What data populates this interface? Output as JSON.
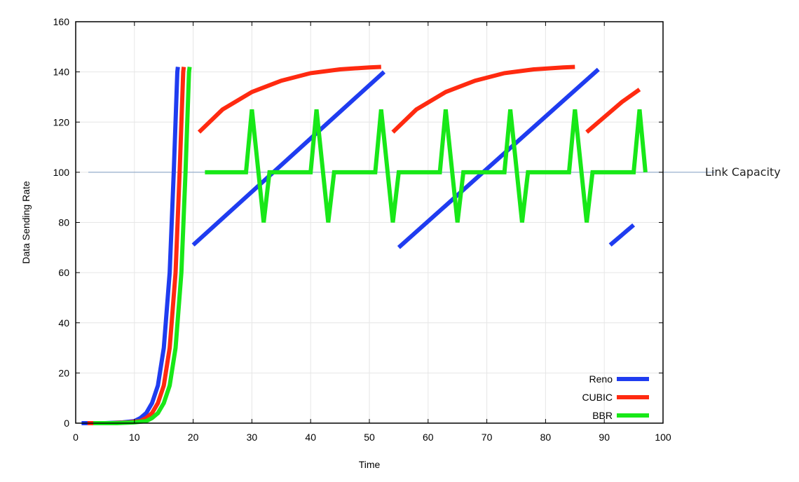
{
  "chart_data": {
    "type": "line",
    "title": "",
    "xlabel": "Time",
    "ylabel": "Data Sending Rate",
    "xlim": [
      0,
      100
    ],
    "ylim": [
      0,
      160
    ],
    "xticks": [
      0,
      10,
      20,
      30,
      40,
      50,
      60,
      70,
      80,
      90,
      100
    ],
    "yticks": [
      0,
      20,
      40,
      60,
      80,
      100,
      120,
      140,
      160
    ],
    "grid": true,
    "legend_position": "bottom-right",
    "reference_line": {
      "y": 100,
      "label": "Link Capacity",
      "color": "#7f9cc2"
    },
    "series": [
      {
        "name": "Reno",
        "color": "#1f3cf0",
        "segments": [
          [
            [
              1,
              0
            ],
            [
              5,
              0
            ],
            [
              8,
              0.3
            ],
            [
              10,
              0.8
            ],
            [
              11,
              2
            ],
            [
              12,
              4
            ],
            [
              13,
              8
            ],
            [
              14,
              15
            ],
            [
              15,
              30
            ],
            [
              16,
              60
            ],
            [
              16.7,
              100
            ],
            [
              17.3,
              140
            ],
            [
              17.4,
              142
            ]
          ],
          [
            [
              20,
              71
            ],
            [
              52.5,
              140
            ]
          ],
          [
            [
              55,
              70
            ],
            [
              89,
              141
            ]
          ],
          [
            [
              91,
              71
            ],
            [
              95,
              79
            ]
          ]
        ]
      },
      {
        "name": "CUBIC",
        "color": "#ff2a10",
        "segments": [
          [
            [
              2,
              0
            ],
            [
              6,
              0
            ],
            [
              9,
              0.3
            ],
            [
              11,
              0.8
            ],
            [
              12,
              2
            ],
            [
              13,
              4
            ],
            [
              14,
              8
            ],
            [
              15,
              15
            ],
            [
              16,
              30
            ],
            [
              17,
              60
            ],
            [
              17.7,
              100
            ],
            [
              18.3,
              140
            ],
            [
              18.4,
              142
            ]
          ],
          [
            [
              21,
              116
            ],
            [
              25,
              125
            ],
            [
              30,
              132
            ],
            [
              35,
              136.5
            ],
            [
              40,
              139.5
            ],
            [
              45,
              141
            ],
            [
              50,
              141.8
            ],
            [
              52,
              142
            ]
          ],
          [
            [
              54,
              116
            ],
            [
              58,
              125
            ],
            [
              63,
              132
            ],
            [
              68,
              136.5
            ],
            [
              73,
              139.5
            ],
            [
              78,
              141
            ],
            [
              83,
              141.8
            ],
            [
              85,
              142
            ]
          ],
          [
            [
              87,
              116
            ],
            [
              90,
              122
            ],
            [
              93,
              128
            ],
            [
              96,
              133
            ]
          ]
        ]
      },
      {
        "name": "BBR",
        "color": "#18e818",
        "segments": [
          [
            [
              3,
              0
            ],
            [
              7,
              0
            ],
            [
              10,
              0.3
            ],
            [
              12,
              0.8
            ],
            [
              13,
              2
            ],
            [
              14,
              4
            ],
            [
              15,
              8
            ],
            [
              16,
              15
            ],
            [
              17,
              30
            ],
            [
              18,
              60
            ],
            [
              18.7,
              100
            ],
            [
              19.3,
              140
            ],
            [
              19.4,
              142
            ]
          ],
          [
            [
              22,
              100
            ],
            [
              29,
              100
            ],
            [
              30,
              125
            ],
            [
              32,
              80
            ],
            [
              33,
              100
            ],
            [
              40,
              100
            ],
            [
              41,
              125
            ],
            [
              43,
              80
            ],
            [
              44,
              100
            ],
            [
              51,
              100
            ],
            [
              52,
              125
            ],
            [
              54,
              80
            ],
            [
              55,
              100
            ],
            [
              62,
              100
            ],
            [
              63,
              125
            ],
            [
              65,
              80
            ],
            [
              66,
              100
            ],
            [
              73,
              100
            ],
            [
              74,
              125
            ],
            [
              76,
              80
            ],
            [
              77,
              100
            ],
            [
              84,
              100
            ],
            [
              85,
              125
            ],
            [
              87,
              80
            ],
            [
              88,
              100
            ],
            [
              95,
              100
            ],
            [
              96,
              125
            ],
            [
              97,
              100
            ]
          ]
        ]
      }
    ]
  }
}
